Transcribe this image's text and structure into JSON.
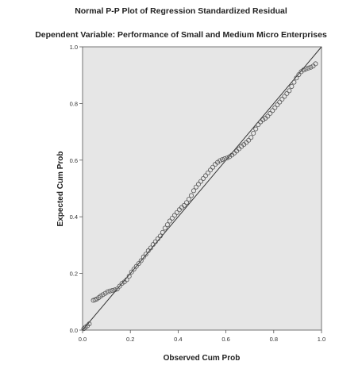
{
  "chart_data": {
    "type": "scatter",
    "title": "Normal P-P Plot of Regression Standardized Residual",
    "subtitle": "Dependent Variable: Performance of Small and Medium Micro Enterprises",
    "xlabel": "Observed Cum Prob",
    "ylabel": "Expected Cum Prob",
    "xlim": [
      0,
      1
    ],
    "ylim": [
      0,
      1
    ],
    "x_ticks": [
      "0.0",
      "0.2",
      "0.4",
      "0.6",
      "0.8",
      "1.0"
    ],
    "y_ticks": [
      "0.0",
      "0.2",
      "0.4",
      "0.6",
      "0.8",
      "1.0"
    ],
    "grid": false,
    "plot_background": "#e6e6e6",
    "reference_line": {
      "x": [
        0,
        1
      ],
      "y": [
        0,
        1
      ]
    },
    "marker": "open-circle",
    "points": [
      [
        0.005,
        0.005
      ],
      [
        0.012,
        0.01
      ],
      [
        0.02,
        0.015
      ],
      [
        0.028,
        0.022
      ],
      [
        0.045,
        0.105
      ],
      [
        0.052,
        0.107
      ],
      [
        0.06,
        0.11
      ],
      [
        0.068,
        0.115
      ],
      [
        0.076,
        0.12
      ],
      [
        0.085,
        0.125
      ],
      [
        0.095,
        0.13
      ],
      [
        0.105,
        0.135
      ],
      [
        0.115,
        0.138
      ],
      [
        0.125,
        0.14
      ],
      [
        0.135,
        0.142
      ],
      [
        0.145,
        0.145
      ],
      [
        0.155,
        0.155
      ],
      [
        0.165,
        0.165
      ],
      [
        0.175,
        0.17
      ],
      [
        0.185,
        0.178
      ],
      [
        0.195,
        0.19
      ],
      [
        0.205,
        0.205
      ],
      [
        0.215,
        0.215
      ],
      [
        0.225,
        0.225
      ],
      [
        0.235,
        0.235
      ],
      [
        0.245,
        0.245
      ],
      [
        0.255,
        0.258
      ],
      [
        0.265,
        0.268
      ],
      [
        0.275,
        0.28
      ],
      [
        0.285,
        0.29
      ],
      [
        0.295,
        0.302
      ],
      [
        0.305,
        0.312
      ],
      [
        0.315,
        0.322
      ],
      [
        0.325,
        0.332
      ],
      [
        0.335,
        0.345
      ],
      [
        0.345,
        0.36
      ],
      [
        0.355,
        0.372
      ],
      [
        0.365,
        0.385
      ],
      [
        0.375,
        0.395
      ],
      [
        0.385,
        0.405
      ],
      [
        0.395,
        0.415
      ],
      [
        0.405,
        0.425
      ],
      [
        0.415,
        0.433
      ],
      [
        0.425,
        0.44
      ],
      [
        0.435,
        0.45
      ],
      [
        0.445,
        0.462
      ],
      [
        0.455,
        0.475
      ],
      [
        0.465,
        0.492
      ],
      [
        0.475,
        0.505
      ],
      [
        0.485,
        0.515
      ],
      [
        0.495,
        0.525
      ],
      [
        0.505,
        0.535
      ],
      [
        0.515,
        0.545
      ],
      [
        0.525,
        0.555
      ],
      [
        0.535,
        0.565
      ],
      [
        0.545,
        0.575
      ],
      [
        0.555,
        0.585
      ],
      [
        0.565,
        0.592
      ],
      [
        0.575,
        0.598
      ],
      [
        0.585,
        0.602
      ],
      [
        0.595,
        0.605
      ],
      [
        0.605,
        0.608
      ],
      [
        0.615,
        0.612
      ],
      [
        0.625,
        0.618
      ],
      [
        0.635,
        0.625
      ],
      [
        0.645,
        0.632
      ],
      [
        0.655,
        0.64
      ],
      [
        0.665,
        0.648
      ],
      [
        0.675,
        0.655
      ],
      [
        0.685,
        0.662
      ],
      [
        0.695,
        0.67
      ],
      [
        0.705,
        0.68
      ],
      [
        0.715,
        0.695
      ],
      [
        0.725,
        0.71
      ],
      [
        0.735,
        0.725
      ],
      [
        0.745,
        0.735
      ],
      [
        0.755,
        0.742
      ],
      [
        0.765,
        0.748
      ],
      [
        0.775,
        0.755
      ],
      [
        0.785,
        0.765
      ],
      [
        0.795,
        0.775
      ],
      [
        0.805,
        0.785
      ],
      [
        0.815,
        0.795
      ],
      [
        0.825,
        0.805
      ],
      [
        0.835,
        0.815
      ],
      [
        0.845,
        0.825
      ],
      [
        0.855,
        0.835
      ],
      [
        0.865,
        0.845
      ],
      [
        0.875,
        0.86
      ],
      [
        0.885,
        0.875
      ],
      [
        0.895,
        0.89
      ],
      [
        0.905,
        0.902
      ],
      [
        0.915,
        0.912
      ],
      [
        0.925,
        0.918
      ],
      [
        0.935,
        0.922
      ],
      [
        0.945,
        0.925
      ],
      [
        0.955,
        0.928
      ],
      [
        0.965,
        0.932
      ],
      [
        0.975,
        0.94
      ]
    ]
  }
}
